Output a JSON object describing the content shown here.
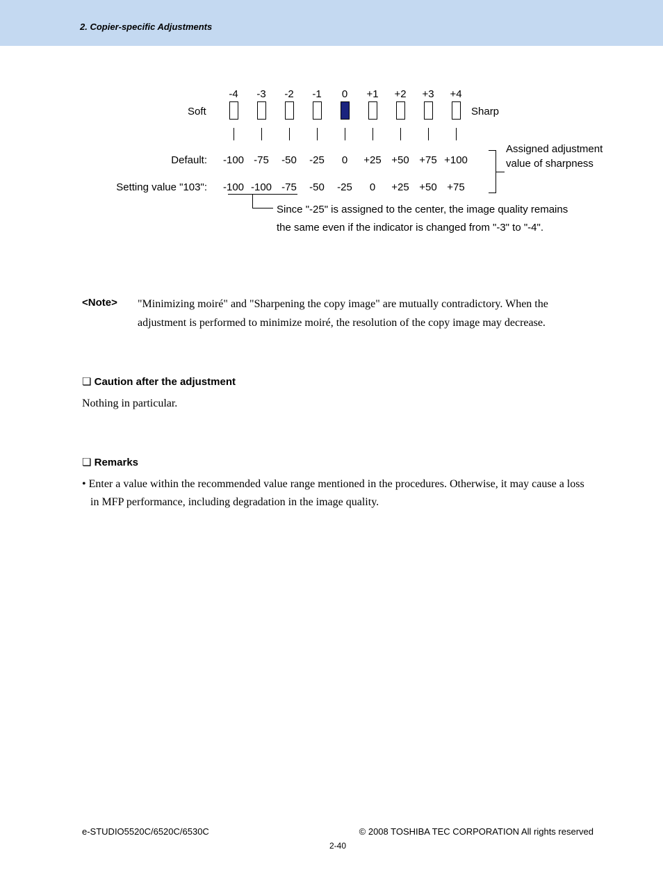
{
  "header": {
    "title": "2. Copier-specific Adjustments"
  },
  "diagram": {
    "scale_labels": [
      "-4",
      "-3",
      "-2",
      "-1",
      "0",
      "+1",
      "+2",
      "+3",
      "+4"
    ],
    "soft_label": "Soft",
    "sharp_label": "Sharp",
    "filled_index": 4,
    "default_label": "Default:",
    "default_values": [
      "-100",
      "-75",
      "-50",
      "-25",
      "0",
      "+25",
      "+50",
      "+75",
      "+100"
    ],
    "setting_label": "Setting value \"103\":",
    "setting_values": [
      "-100",
      "-100",
      "-75",
      "-50",
      "-25",
      "0",
      "+25",
      "+50",
      "+75"
    ],
    "bracket_text": "Assigned adjustment value of sharpness",
    "explain_text": "Since \"-25\" is assigned to the center, the image quality remains the same even if the indicator is changed from \"-3\" to \"-4\"."
  },
  "note": {
    "label": "<Note>",
    "text": "\"Minimizing moiré\" and \"Sharpening the copy image\" are mutually contradictory.  When the adjustment is performed to minimize moiré, the resolution of the copy image may decrease."
  },
  "sections": {
    "caution": {
      "heading": "Caution after the adjustment",
      "body": "Nothing in particular."
    },
    "remarks": {
      "heading": "Remarks",
      "body": "• Enter a value within the recommended value range mentioned in the procedures.  Otherwise, it may cause a loss in MFP performance, including degradation in the image quality."
    }
  },
  "footer": {
    "left": "e-STUDIO5520C/6520C/6530C",
    "right": "© 2008 TOSHIBA TEC CORPORATION All rights reserved",
    "page": "2-40"
  },
  "colors": {
    "header_bg": "#c4d9f1",
    "box_fill": "#1a237e"
  }
}
